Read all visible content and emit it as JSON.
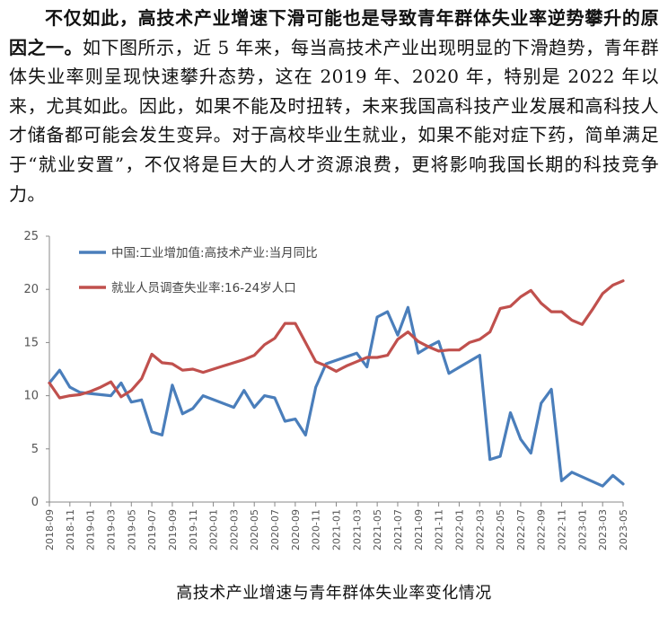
{
  "paragraph": {
    "bold_lead": "不仅如此，高技术产业增速下滑可能也是导致青年群体失业率逆势攀升的原因之一。",
    "body": "如下图所示，近 5 年来，每当高技术产业出现明显的下滑趋势，青年群体失业率则呈现快速攀升态势，这在 2019 年、2020 年，特别是 2022 年以来，尤其如此。因此，如果不能及时扭转，未来我国高科技产业发展和高科技人才储备都可能会发生变异。对于高校毕业生就业，如果不能对症下药，简单满足于“就业安置”，不仅将是巨大的人才资源浪费，更将影响我国长期的科技竞争力。"
  },
  "chart_data": {
    "type": "line",
    "title": "",
    "ylim": [
      0,
      25
    ],
    "yticks": [
      0,
      5,
      10,
      15,
      20,
      25
    ],
    "xlabel": "",
    "ylabel": "",
    "legend_position": "top-left",
    "grid": false,
    "tick_labels": [
      "2018-09",
      "2018-11",
      "2019-01",
      "2019-03",
      "2019-05",
      "2019-07",
      "2019-09",
      "2019-11",
      "2020-01",
      "2020-03",
      "2020-05",
      "2020-07",
      "2020-09",
      "2020-11",
      "2021-01",
      "2021-03",
      "2021-05",
      "2021-07",
      "2021-09",
      "2021-11",
      "2022-01",
      "2022-03",
      "2022-05",
      "2022-07",
      "2022-09",
      "2022-11",
      "2023-01",
      "2023-03",
      "2023-05"
    ],
    "series": [
      {
        "name": "中国:工业增加值:高技术产业:当月同比",
        "color": "#4a7ebb",
        "points": [
          [
            "2018-09",
            11.2
          ],
          [
            "2018-10",
            12.4
          ],
          [
            "2018-11",
            10.8
          ],
          [
            "2018-12",
            10.3
          ],
          [
            "2019-03",
            10.0
          ],
          [
            "2019-04",
            11.2
          ],
          [
            "2019-05",
            9.4
          ],
          [
            "2019-06",
            9.6
          ],
          [
            "2019-07",
            6.6
          ],
          [
            "2019-08",
            6.3
          ],
          [
            "2019-09",
            11.0
          ],
          [
            "2019-10",
            8.3
          ],
          [
            "2019-11",
            8.8
          ],
          [
            "2019-12",
            10.0
          ],
          [
            "2020-03",
            8.9
          ],
          [
            "2020-04",
            10.5
          ],
          [
            "2020-05",
            8.9
          ],
          [
            "2020-06",
            10.0
          ],
          [
            "2020-07",
            9.8
          ],
          [
            "2020-08",
            7.6
          ],
          [
            "2020-09",
            7.8
          ],
          [
            "2020-10",
            6.3
          ],
          [
            "2020-11",
            10.8
          ],
          [
            "2020-12",
            13.0
          ],
          [
            "2021-03",
            14.0
          ],
          [
            "2021-04",
            12.7
          ],
          [
            "2021-05",
            17.4
          ],
          [
            "2021-06",
            17.9
          ],
          [
            "2021-07",
            15.7
          ],
          [
            "2021-08",
            18.3
          ],
          [
            "2021-09",
            14.0
          ],
          [
            "2021-10",
            14.6
          ],
          [
            "2021-11",
            15.1
          ],
          [
            "2021-12",
            12.1
          ],
          [
            "2022-03",
            13.8
          ],
          [
            "2022-04",
            4.0
          ],
          [
            "2022-05",
            4.3
          ],
          [
            "2022-06",
            8.4
          ],
          [
            "2022-07",
            5.9
          ],
          [
            "2022-08",
            4.6
          ],
          [
            "2022-09",
            9.3
          ],
          [
            "2022-10",
            10.6
          ],
          [
            "2022-11",
            2.0
          ],
          [
            "2022-12",
            2.8
          ],
          [
            "2023-03",
            1.5
          ],
          [
            "2023-04",
            2.5
          ],
          [
            "2023-05",
            1.7
          ]
        ]
      },
      {
        "name": "就业人员调查失业率:16-24岁人口",
        "color": "#c0504d",
        "points": [
          [
            "2018-09",
            11.2
          ],
          [
            "2018-10",
            9.8
          ],
          [
            "2018-11",
            10.0
          ],
          [
            "2018-12",
            10.1
          ],
          [
            "2019-01",
            10.4
          ],
          [
            "2019-02",
            10.8
          ],
          [
            "2019-03",
            11.3
          ],
          [
            "2019-04",
            9.9
          ],
          [
            "2019-05",
            10.5
          ],
          [
            "2019-06",
            11.6
          ],
          [
            "2019-07",
            13.9
          ],
          [
            "2019-08",
            13.1
          ],
          [
            "2019-09",
            13.0
          ],
          [
            "2019-10",
            12.4
          ],
          [
            "2019-11",
            12.5
          ],
          [
            "2019-12",
            12.2
          ],
          [
            "2020-01",
            12.5
          ],
          [
            "2020-02",
            12.8
          ],
          [
            "2020-03",
            13.1
          ],
          [
            "2020-04",
            13.4
          ],
          [
            "2020-05",
            13.8
          ],
          [
            "2020-06",
            14.8
          ],
          [
            "2020-07",
            15.4
          ],
          [
            "2020-08",
            16.8
          ],
          [
            "2020-09",
            16.8
          ],
          [
            "2020-10",
            15.0
          ],
          [
            "2020-11",
            13.2
          ],
          [
            "2020-12",
            12.8
          ],
          [
            "2021-01",
            12.3
          ],
          [
            "2021-02",
            12.8
          ],
          [
            "2021-03",
            13.2
          ],
          [
            "2021-04",
            13.6
          ],
          [
            "2021-05",
            13.6
          ],
          [
            "2021-06",
            13.8
          ],
          [
            "2021-07",
            15.3
          ],
          [
            "2021-08",
            16.0
          ],
          [
            "2021-09",
            15.1
          ],
          [
            "2021-10",
            14.6
          ],
          [
            "2021-11",
            14.2
          ],
          [
            "2021-12",
            14.3
          ],
          [
            "2022-01",
            14.3
          ],
          [
            "2022-02",
            15.0
          ],
          [
            "2022-03",
            15.3
          ],
          [
            "2022-04",
            16.0
          ],
          [
            "2022-05",
            18.2
          ],
          [
            "2022-06",
            18.4
          ],
          [
            "2022-07",
            19.3
          ],
          [
            "2022-08",
            19.9
          ],
          [
            "2022-09",
            18.7
          ],
          [
            "2022-10",
            17.9
          ],
          [
            "2022-11",
            17.9
          ],
          [
            "2022-12",
            17.1
          ],
          [
            "2023-01",
            16.7
          ],
          [
            "2023-02",
            18.1
          ],
          [
            "2023-03",
            19.6
          ],
          [
            "2023-04",
            20.4
          ],
          [
            "2023-05",
            20.8
          ]
        ]
      }
    ]
  },
  "caption": "高技术产业增速与青年群体失业率变化情况"
}
